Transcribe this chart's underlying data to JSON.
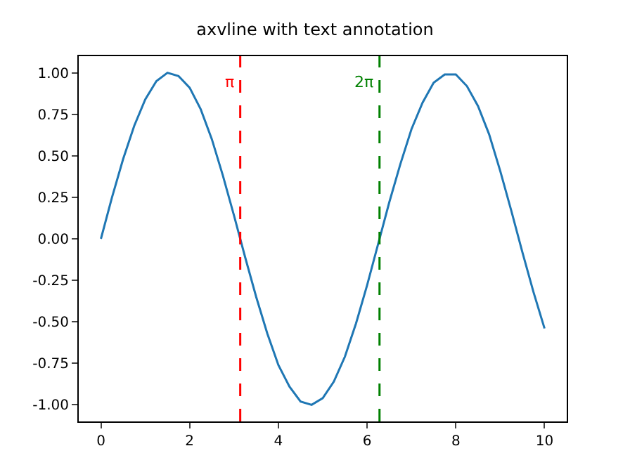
{
  "chart_data": {
    "type": "line",
    "title": "axvline with text annotation",
    "x": [
      0,
      0.25,
      0.5,
      0.75,
      1,
      1.25,
      1.5,
      1.75,
      2,
      2.25,
      2.5,
      2.75,
      3,
      3.25,
      3.5,
      3.75,
      4,
      4.25,
      4.5,
      4.75,
      5,
      5.25,
      5.5,
      5.75,
      6,
      6.25,
      6.5,
      6.75,
      7,
      7.25,
      7.5,
      7.75,
      8,
      8.25,
      8.5,
      8.75,
      9,
      9.25,
      9.5,
      9.75,
      10
    ],
    "series": [
      {
        "color": "#1f77b4",
        "values": [
          0,
          0.25,
          0.48,
          0.68,
          0.84,
          0.95,
          1.0,
          0.98,
          0.91,
          0.78,
          0.6,
          0.38,
          0.14,
          -0.11,
          -0.35,
          -0.57,
          -0.76,
          -0.89,
          -0.98,
          -1.0,
          -0.96,
          -0.86,
          -0.71,
          -0.51,
          -0.28,
          -0.03,
          0.22,
          0.45,
          0.66,
          0.82,
          0.94,
          0.99,
          0.99,
          0.92,
          0.8,
          0.63,
          0.41,
          0.17,
          -0.08,
          -0.32,
          -0.54
        ]
      }
    ],
    "xlim": [
      -0.5,
      10.5
    ],
    "ylim": [
      -1.1,
      1.1
    ],
    "xticks": [
      0,
      2,
      4,
      6,
      8,
      10
    ],
    "yticks": [
      {
        "value": -1,
        "label": "-1.00"
      },
      {
        "value": -0.75,
        "label": "-0.75"
      },
      {
        "value": -0.5,
        "label": "-0.50"
      },
      {
        "value": -0.25,
        "label": "-0.25"
      },
      {
        "value": 0,
        "label": "0.00"
      },
      {
        "value": 0.25,
        "label": "0.25"
      },
      {
        "value": 0.5,
        "label": "0.50"
      },
      {
        "value": 0.75,
        "label": "0.75"
      },
      {
        "value": 1,
        "label": "1.00"
      }
    ],
    "ref_lines": [
      {
        "axis": "x",
        "value": 3.14,
        "label": "π",
        "color": "#ff0000",
        "line_style": "dashed"
      },
      {
        "axis": "x",
        "value": 6.28,
        "label": "2π",
        "color": "#008000",
        "line_style": "dashed"
      }
    ],
    "marker": "none",
    "line_style": "solid"
  }
}
